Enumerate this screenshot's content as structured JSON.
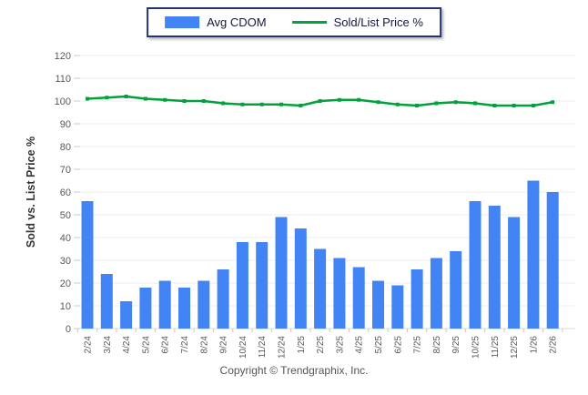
{
  "legend": {
    "items": [
      {
        "label": "Avg CDOM",
        "type": "bar",
        "color": "#4384f5"
      },
      {
        "label": "Sold/List Price %",
        "type": "line",
        "color": "#00a23c"
      }
    ]
  },
  "chart_data": {
    "type": "bar",
    "title": "",
    "xlabel": "",
    "ylabel": "Sold vs. List Price %",
    "ylim": [
      0,
      120
    ],
    "ytick_step": 10,
    "grid": true,
    "legend_position": "top-center",
    "categories": [
      "2/24",
      "3/24",
      "4/24",
      "5/24",
      "6/24",
      "7/24",
      "8/24",
      "9/24",
      "10/24",
      "11/24",
      "12/24",
      "1/25",
      "2/25",
      "3/25",
      "4/25",
      "5/25",
      "6/25",
      "7/25",
      "8/25",
      "9/25",
      "10/25",
      "11/25",
      "12/25",
      "1/26",
      "2/26"
    ],
    "series": [
      {
        "name": "Avg CDOM",
        "type": "bar",
        "color": "#4384f5",
        "values": [
          56,
          24,
          12,
          18,
          21,
          18,
          21,
          26,
          38,
          38,
          49,
          44,
          35,
          31,
          27,
          21,
          19,
          26,
          31,
          34,
          56,
          54,
          49,
          65,
          60
        ]
      },
      {
        "name": "Sold/List Price %",
        "type": "line",
        "color": "#00a23c",
        "values": [
          101,
          101.5,
          102,
          101,
          100.5,
          100,
          100,
          99,
          98.5,
          98.5,
          98.5,
          98,
          100,
          100.5,
          100.5,
          99.5,
          98.5,
          98,
          99,
          99.5,
          99,
          98,
          98,
          98,
          99.5
        ]
      }
    ]
  },
  "footer": {
    "copyright": "Copyright © Trendgraphix, Inc."
  },
  "colors": {
    "grid": "#ececec",
    "axis": "#d9d9d9",
    "tick": "#c9c9c9",
    "tick_label": "#595959",
    "axis_title": "#333333",
    "legend_border": "#24356e"
  }
}
